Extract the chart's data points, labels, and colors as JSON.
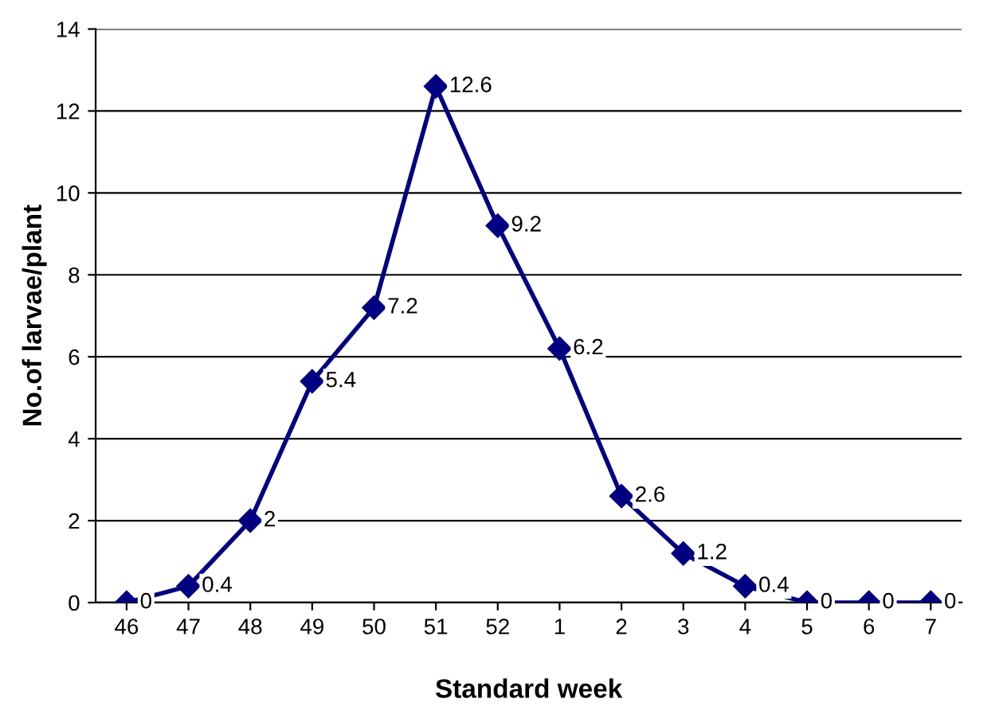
{
  "chart_data": {
    "type": "line",
    "xlabel": "Standard week",
    "ylabel": "No.of larvae/plant",
    "categories": [
      "46",
      "47",
      "48",
      "49",
      "50",
      "51",
      "52",
      "1",
      "2",
      "3",
      "4",
      "5",
      "6",
      "7"
    ],
    "series": [
      {
        "color": "#000080",
        "values": [
          0,
          0.4,
          2,
          5.4,
          7.2,
          12.6,
          9.2,
          6.2,
          2.6,
          1.2,
          0.4,
          0,
          0,
          0
        ]
      }
    ],
    "ylim": [
      0,
      14
    ],
    "yticks": [
      0,
      2,
      4,
      6,
      8,
      10,
      12,
      14
    ],
    "grid": "y",
    "marker": "diamond",
    "line_style": "solid",
    "data_labels": true
  }
}
